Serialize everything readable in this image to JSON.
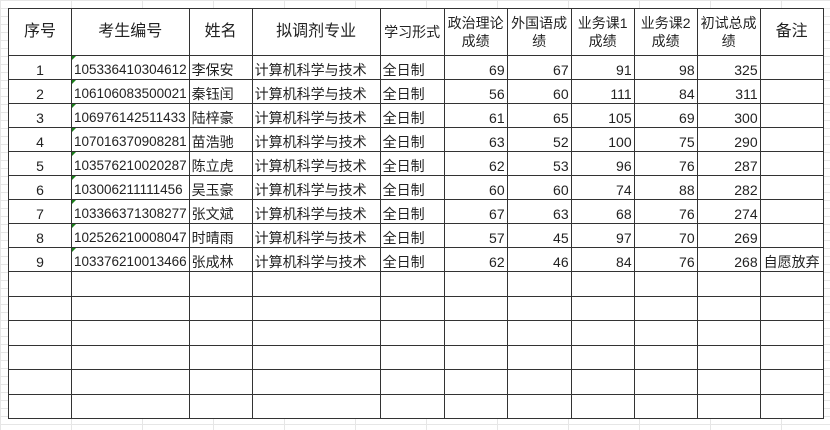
{
  "headers": [
    "序号",
    "考生编号",
    "姓名",
    "拟调剂专业",
    "学习形式",
    "政治理论成绩",
    "外国语成绩",
    "业务课1成绩",
    "业务课2成绩",
    "初试总成绩",
    "备注"
  ],
  "rows": [
    [
      "1",
      "105336410304612",
      "李保安",
      "计算机科学与技术",
      "全日制",
      "69",
      "67",
      "91",
      "98",
      "325",
      ""
    ],
    [
      "2",
      "106106083500021",
      "秦钰闰",
      "计算机科学与技术",
      "全日制",
      "56",
      "60",
      "111",
      "84",
      "311",
      ""
    ],
    [
      "3",
      "106976142511433",
      "陆梓豪",
      "计算机科学与技术",
      "全日制",
      "61",
      "65",
      "105",
      "69",
      "300",
      ""
    ],
    [
      "4",
      "107016370908281",
      "苗浩驰",
      "计算机科学与技术",
      "全日制",
      "63",
      "52",
      "100",
      "75",
      "290",
      ""
    ],
    [
      "5",
      "103576210020287",
      "陈立虎",
      "计算机科学与技术",
      "全日制",
      "62",
      "53",
      "96",
      "76",
      "287",
      ""
    ],
    [
      "6",
      "103006211111456",
      "吴玉豪",
      "计算机科学与技术",
      "全日制",
      "60",
      "60",
      "74",
      "88",
      "282",
      ""
    ],
    [
      "7",
      "103366371308277",
      "张文斌",
      "计算机科学与技术",
      "全日制",
      "67",
      "63",
      "68",
      "76",
      "274",
      ""
    ],
    [
      "8",
      "102526210008047",
      "时晴雨",
      "计算机科学与技术",
      "全日制",
      "57",
      "45",
      "97",
      "70",
      "269",
      ""
    ],
    [
      "9",
      "103376210013466",
      "张成林",
      "计算机科学与技术",
      "全日制",
      "62",
      "46",
      "84",
      "76",
      "268",
      "自愿放弃"
    ]
  ],
  "empty_rows": 6
}
